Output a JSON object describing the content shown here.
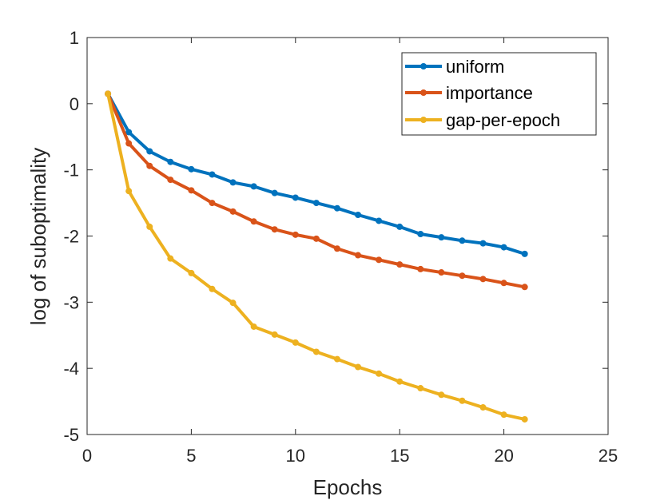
{
  "chart_data": {
    "type": "line",
    "xlabel": "Epochs",
    "ylabel": "log of suboptimality",
    "xlim": [
      0,
      25
    ],
    "ylim": [
      -5,
      1
    ],
    "xticks": [
      0,
      5,
      10,
      15,
      20,
      25
    ],
    "yticks": [
      1,
      0,
      -1,
      -2,
      -3,
      -4,
      -5
    ],
    "grid": false,
    "legend_position": "top-right",
    "x": [
      1,
      2,
      3,
      4,
      5,
      6,
      7,
      8,
      9,
      10,
      11,
      12,
      13,
      14,
      15,
      16,
      17,
      18,
      19,
      20,
      21
    ],
    "series": [
      {
        "name": "uniform",
        "color": "#0072BD",
        "values": [
          0.15,
          -0.43,
          -0.72,
          -0.88,
          -0.99,
          -1.07,
          -1.19,
          -1.25,
          -1.35,
          -1.42,
          -1.5,
          -1.58,
          -1.68,
          -1.77,
          -1.86,
          -1.97,
          -2.02,
          -2.07,
          -2.11,
          -2.17,
          -2.27
        ]
      },
      {
        "name": "importance",
        "color": "#D95319",
        "values": [
          0.15,
          -0.6,
          -0.94,
          -1.15,
          -1.31,
          -1.5,
          -1.63,
          -1.78,
          -1.9,
          -1.98,
          -2.04,
          -2.19,
          -2.29,
          -2.36,
          -2.43,
          -2.5,
          -2.55,
          -2.6,
          -2.65,
          -2.71,
          -2.77
        ]
      },
      {
        "name": "gap-per-epoch",
        "color": "#EDB120",
        "values": [
          0.15,
          -1.32,
          -1.86,
          -2.34,
          -2.56,
          -2.8,
          -3.01,
          -3.37,
          -3.49,
          -3.61,
          -3.75,
          -3.86,
          -3.98,
          -4.08,
          -4.2,
          -4.3,
          -4.4,
          -4.49,
          -4.59,
          -4.7,
          -4.77
        ]
      }
    ]
  }
}
